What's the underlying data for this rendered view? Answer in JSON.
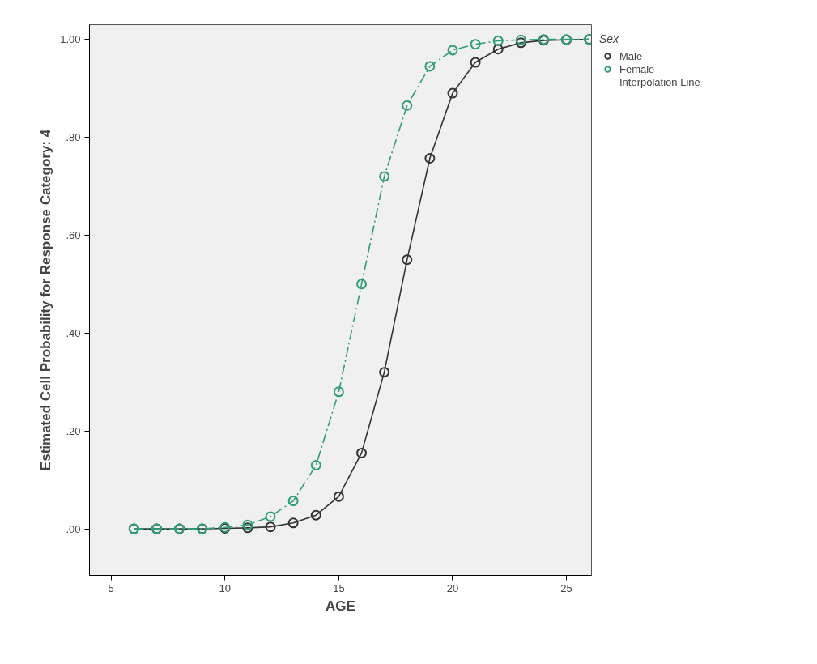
{
  "chart_data": {
    "type": "line",
    "xlabel": "AGE",
    "ylabel": "Estimated Cell Probability for Response Category: 4",
    "legend_title": "Sex",
    "x": [
      6,
      7,
      8,
      9,
      10,
      11,
      12,
      13,
      14,
      15,
      16,
      17,
      18,
      19,
      20,
      21,
      22,
      23,
      24,
      25,
      26
    ],
    "series": [
      {
        "name": "Male",
        "color": "#333333",
        "line_style": "solid",
        "values": [
          0,
          0,
          0,
          0,
          0.001,
          0.002,
          0.004,
          0.012,
          0.028,
          0.066,
          0.155,
          0.32,
          0.55,
          0.757,
          0.89,
          0.953,
          0.98,
          0.993,
          0.998,
          0.999,
          1
        ]
      },
      {
        "name": "Female",
        "color": "#2e9e7a",
        "line_style": "dashed",
        "values": [
          0,
          0,
          0,
          0,
          0.003,
          0.008,
          0.025,
          0.057,
          0.13,
          0.28,
          0.5,
          0.72,
          0.865,
          0.945,
          0.978,
          0.99,
          0.997,
          0.999,
          1,
          1,
          1
        ]
      }
    ],
    "annotations": [
      "Interpolation Line"
    ],
    "marker": "circle",
    "xlim": [
      4.05,
      26.1
    ],
    "xticks": [
      5,
      10,
      15,
      20,
      25
    ],
    "ylim": [
      -0.095,
      1.03
    ],
    "yticks": [
      {
        "value": 0,
        "label": ".00"
      },
      {
        "value": 0.2,
        "label": ".20"
      },
      {
        "value": 0.4,
        "label": ".40"
      },
      {
        "value": 0.6,
        "label": ".60"
      },
      {
        "value": 0.8,
        "label": ".80"
      },
      {
        "value": 1,
        "label": "1.00"
      }
    ],
    "grid": false,
    "legend": "top right"
  }
}
